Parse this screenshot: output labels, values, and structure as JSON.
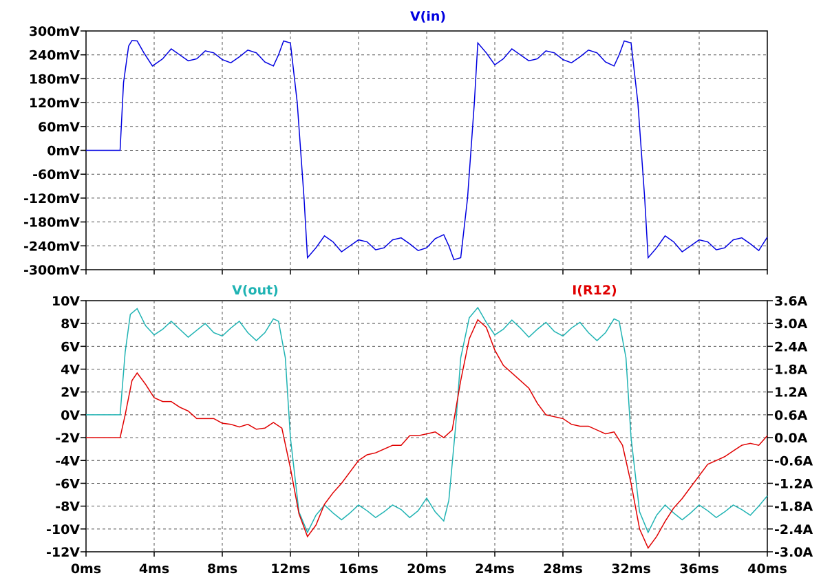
{
  "colors": {
    "vin": "#0000e0",
    "vout": "#1fb3b3",
    "ir12": "#e00000",
    "grid": "#555555",
    "background": "#ffffff"
  },
  "chart_data": [
    {
      "type": "line",
      "title": "V(in)",
      "x_ticks": [
        "0ms",
        "4ms",
        "8ms",
        "12ms",
        "16ms",
        "20ms",
        "24ms",
        "28ms",
        "32ms",
        "36ms",
        "40ms"
      ],
      "y_ticks": [
        "300mV",
        "240mV",
        "180mV",
        "120mV",
        "60mV",
        "0mV",
        "-60mV",
        "-120mV",
        "-180mV",
        "-240mV",
        "-300mV"
      ],
      "xlim": [
        0,
        40
      ],
      "ylim": [
        -300,
        300
      ],
      "x_unit": "ms",
      "y_unit": "mV",
      "grid": true,
      "series": [
        {
          "name": "V(in)",
          "color": "#0000e0",
          "x": [
            0,
            2,
            2.2,
            2.5,
            2.7,
            3,
            3.4,
            3.9,
            4.5,
            5,
            5.5,
            6,
            6.5,
            7,
            7.5,
            8,
            8.5,
            9,
            9.5,
            10,
            10.5,
            11,
            11.3,
            11.6,
            12,
            12.4,
            12.8,
            13,
            13.5,
            14,
            14.5,
            15,
            15.5,
            16,
            16.5,
            17,
            17.5,
            18,
            18.5,
            19,
            19.5,
            20,
            20.5,
            21,
            21.3,
            21.6,
            22,
            22.4,
            22.8,
            23,
            23.5,
            24,
            24.5,
            25,
            25.5,
            26,
            26.5,
            27,
            27.5,
            28,
            28.5,
            29,
            29.5,
            30,
            30.5,
            31,
            31.3,
            31.6,
            32,
            32.4,
            32.8,
            33,
            33.5,
            34,
            34.5,
            35,
            35.5,
            36,
            36.5,
            37,
            37.5,
            38,
            38.5,
            39,
            39.5,
            40
          ],
          "y": [
            0,
            0,
            170,
            262,
            276,
            275,
            245,
            212,
            230,
            255,
            240,
            225,
            230,
            250,
            245,
            228,
            220,
            235,
            252,
            245,
            222,
            212,
            240,
            275,
            270,
            120,
            -120,
            -270,
            -245,
            -215,
            -230,
            -255,
            -240,
            -225,
            -230,
            -250,
            -245,
            -225,
            -220,
            -235,
            -252,
            -245,
            -222,
            -212,
            -240,
            -275,
            -270,
            -120,
            120,
            270,
            245,
            215,
            230,
            255,
            240,
            225,
            230,
            250,
            245,
            228,
            220,
            235,
            252,
            245,
            222,
            212,
            240,
            275,
            270,
            120,
            -120,
            -270,
            -245,
            -215,
            -230,
            -255,
            -240,
            -225,
            -230,
            -250,
            -245,
            -225,
            -220,
            -235,
            -252,
            -218
          ]
        }
      ]
    },
    {
      "type": "line",
      "titles": [
        "V(out)",
        "I(R12)"
      ],
      "x_ticks": [
        "0ms",
        "4ms",
        "8ms",
        "12ms",
        "16ms",
        "20ms",
        "24ms",
        "28ms",
        "32ms",
        "36ms",
        "40ms"
      ],
      "y_ticks_left": [
        "10V",
        "8V",
        "6V",
        "4V",
        "2V",
        "0V",
        "-2V",
        "-4V",
        "-6V",
        "-8V",
        "-10V",
        "-12V"
      ],
      "y_ticks_right": [
        "3.6A",
        "3.0A",
        "2.4A",
        "1.8A",
        "1.2A",
        "0.6A",
        "0.0A",
        "-0.6A",
        "-1.2A",
        "-1.8A",
        "-2.4A",
        "-3.0A"
      ],
      "xlim": [
        0,
        40
      ],
      "ylim_left": [
        -12,
        10
      ],
      "ylim_right": [
        -3.0,
        3.6
      ],
      "x_unit": "ms",
      "grid": true,
      "series": [
        {
          "name": "V(out)",
          "axis": "left",
          "color": "#1fb3b3",
          "x": [
            0,
            2,
            2.3,
            2.6,
            3,
            3.5,
            4,
            4.5,
            5,
            5.5,
            6,
            6.5,
            7,
            7.5,
            8,
            8.5,
            9,
            9.5,
            10,
            10.5,
            11,
            11.3,
            11.7,
            12,
            12.5,
            13,
            13.5,
            14,
            14.5,
            15,
            15.5,
            16,
            16.5,
            17,
            17.5,
            18,
            18.5,
            19,
            19.5,
            20,
            20.5,
            21,
            21.3,
            21.7,
            22,
            22.5,
            23,
            23.5,
            24,
            24.5,
            25,
            25.5,
            26,
            26.5,
            27,
            27.5,
            28,
            28.5,
            29,
            29.5,
            30,
            30.5,
            31,
            31.3,
            31.7,
            32,
            32.5,
            33,
            33.5,
            34,
            34.5,
            35,
            35.5,
            36,
            36.5,
            37,
            37.5,
            38,
            38.5,
            39,
            39.5,
            40
          ],
          "y": [
            0,
            0,
            5.5,
            8.8,
            9.3,
            7.8,
            7.0,
            7.5,
            8.2,
            7.5,
            6.8,
            7.4,
            8.0,
            7.2,
            6.9,
            7.6,
            8.2,
            7.2,
            6.5,
            7.2,
            8.4,
            8.2,
            5,
            -2,
            -8.5,
            -10.3,
            -8.8,
            -7.9,
            -8.6,
            -9.2,
            -8.6,
            -7.9,
            -8.4,
            -9.0,
            -8.5,
            -7.9,
            -8.3,
            -9.0,
            -8.4,
            -7.3,
            -8.5,
            -9.3,
            -7.5,
            -1,
            5,
            8.5,
            9.4,
            8.1,
            7.0,
            7.5,
            8.3,
            7.6,
            6.8,
            7.5,
            8.1,
            7.3,
            6.9,
            7.6,
            8.1,
            7.2,
            6.5,
            7.2,
            8.4,
            8.2,
            5,
            -2,
            -8.5,
            -10.3,
            -8.8,
            -7.9,
            -8.6,
            -9.2,
            -8.6,
            -7.9,
            -8.4,
            -9.0,
            -8.5,
            -7.9,
            -8.3,
            -8.8,
            -8.0,
            -7.1
          ]
        },
        {
          "name": "I(R12)",
          "axis": "right",
          "color": "#e00000",
          "x": [
            0,
            2,
            2.3,
            2.7,
            3,
            3.5,
            4,
            4.5,
            5,
            5.5,
            6,
            6.5,
            7,
            7.5,
            8,
            8.5,
            9,
            9.5,
            10,
            10.5,
            11,
            11.5,
            12,
            12.5,
            13,
            13.5,
            14,
            14.5,
            15,
            15.5,
            16,
            16.5,
            17,
            17.5,
            18,
            18.5,
            19,
            19.5,
            20,
            20.5,
            21,
            21.5,
            22,
            22.5,
            23,
            23.5,
            24,
            24.5,
            25,
            25.5,
            26,
            26.5,
            27,
            27.5,
            28,
            28.5,
            29,
            29.5,
            30,
            30.5,
            31,
            31.5,
            32,
            32.5,
            33,
            33.5,
            34,
            34.5,
            35,
            35.5,
            36,
            36.5,
            37,
            37.5,
            38,
            38.5,
            39,
            39.5,
            40
          ],
          "y": [
            0,
            0,
            0.6,
            1.5,
            1.7,
            1.4,
            1.05,
            0.95,
            0.95,
            0.8,
            0.7,
            0.5,
            0.5,
            0.5,
            0.38,
            0.35,
            0.28,
            0.35,
            0.22,
            0.25,
            0.4,
            0.25,
            -0.8,
            -2.0,
            -2.6,
            -2.3,
            -1.75,
            -1.45,
            -1.2,
            -0.9,
            -0.6,
            -0.45,
            -0.4,
            -0.3,
            -0.2,
            -0.2,
            0.05,
            0.05,
            0.1,
            0.15,
            0.0,
            0.2,
            1.5,
            2.6,
            3.1,
            2.9,
            2.3,
            1.9,
            1.7,
            1.5,
            1.3,
            0.9,
            0.6,
            0.55,
            0.5,
            0.35,
            0.3,
            0.3,
            0.2,
            0.1,
            0.15,
            -0.2,
            -1.2,
            -2.4,
            -2.9,
            -2.6,
            -2.2,
            -1.85,
            -1.6,
            -1.3,
            -1.0,
            -0.7,
            -0.6,
            -0.5,
            -0.35,
            -0.2,
            -0.15,
            -0.2,
            0.05
          ]
        }
      ]
    }
  ]
}
